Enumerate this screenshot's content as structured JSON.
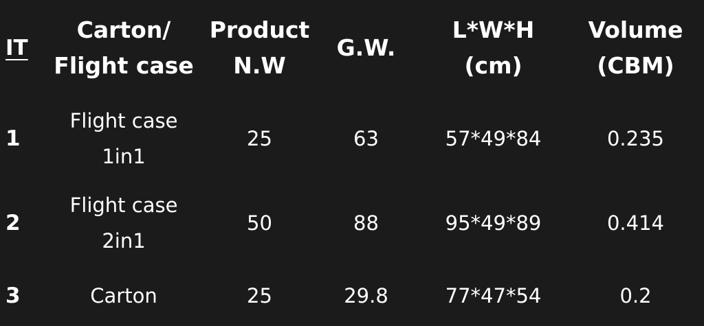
{
  "table": {
    "headers": [
      [
        "IT"
      ],
      [
        "Carton/",
        "Flight case"
      ],
      [
        "Product",
        "N.W"
      ],
      [
        "G.W."
      ],
      [
        "L*W*H",
        "(cm)"
      ],
      [
        "Volume",
        "(CBM)"
      ]
    ],
    "rows": [
      {
        "it": "1",
        "type": [
          "Flight case",
          "1in1"
        ],
        "nw": "25",
        "gw": "63",
        "lwh": "57*49*84",
        "volume": "0.235"
      },
      {
        "it": "2",
        "type": [
          "Flight case",
          "2in1"
        ],
        "nw": "50",
        "gw": "88",
        "lwh": "95*49*89",
        "volume": "0.414"
      },
      {
        "it": "3",
        "type": [
          "Carton"
        ],
        "nw": "25",
        "gw": "29.8",
        "lwh": "77*47*54",
        "volume": "0.2"
      }
    ]
  },
  "colors": {
    "background": "#1b1b1b",
    "text": "#ffffff"
  }
}
